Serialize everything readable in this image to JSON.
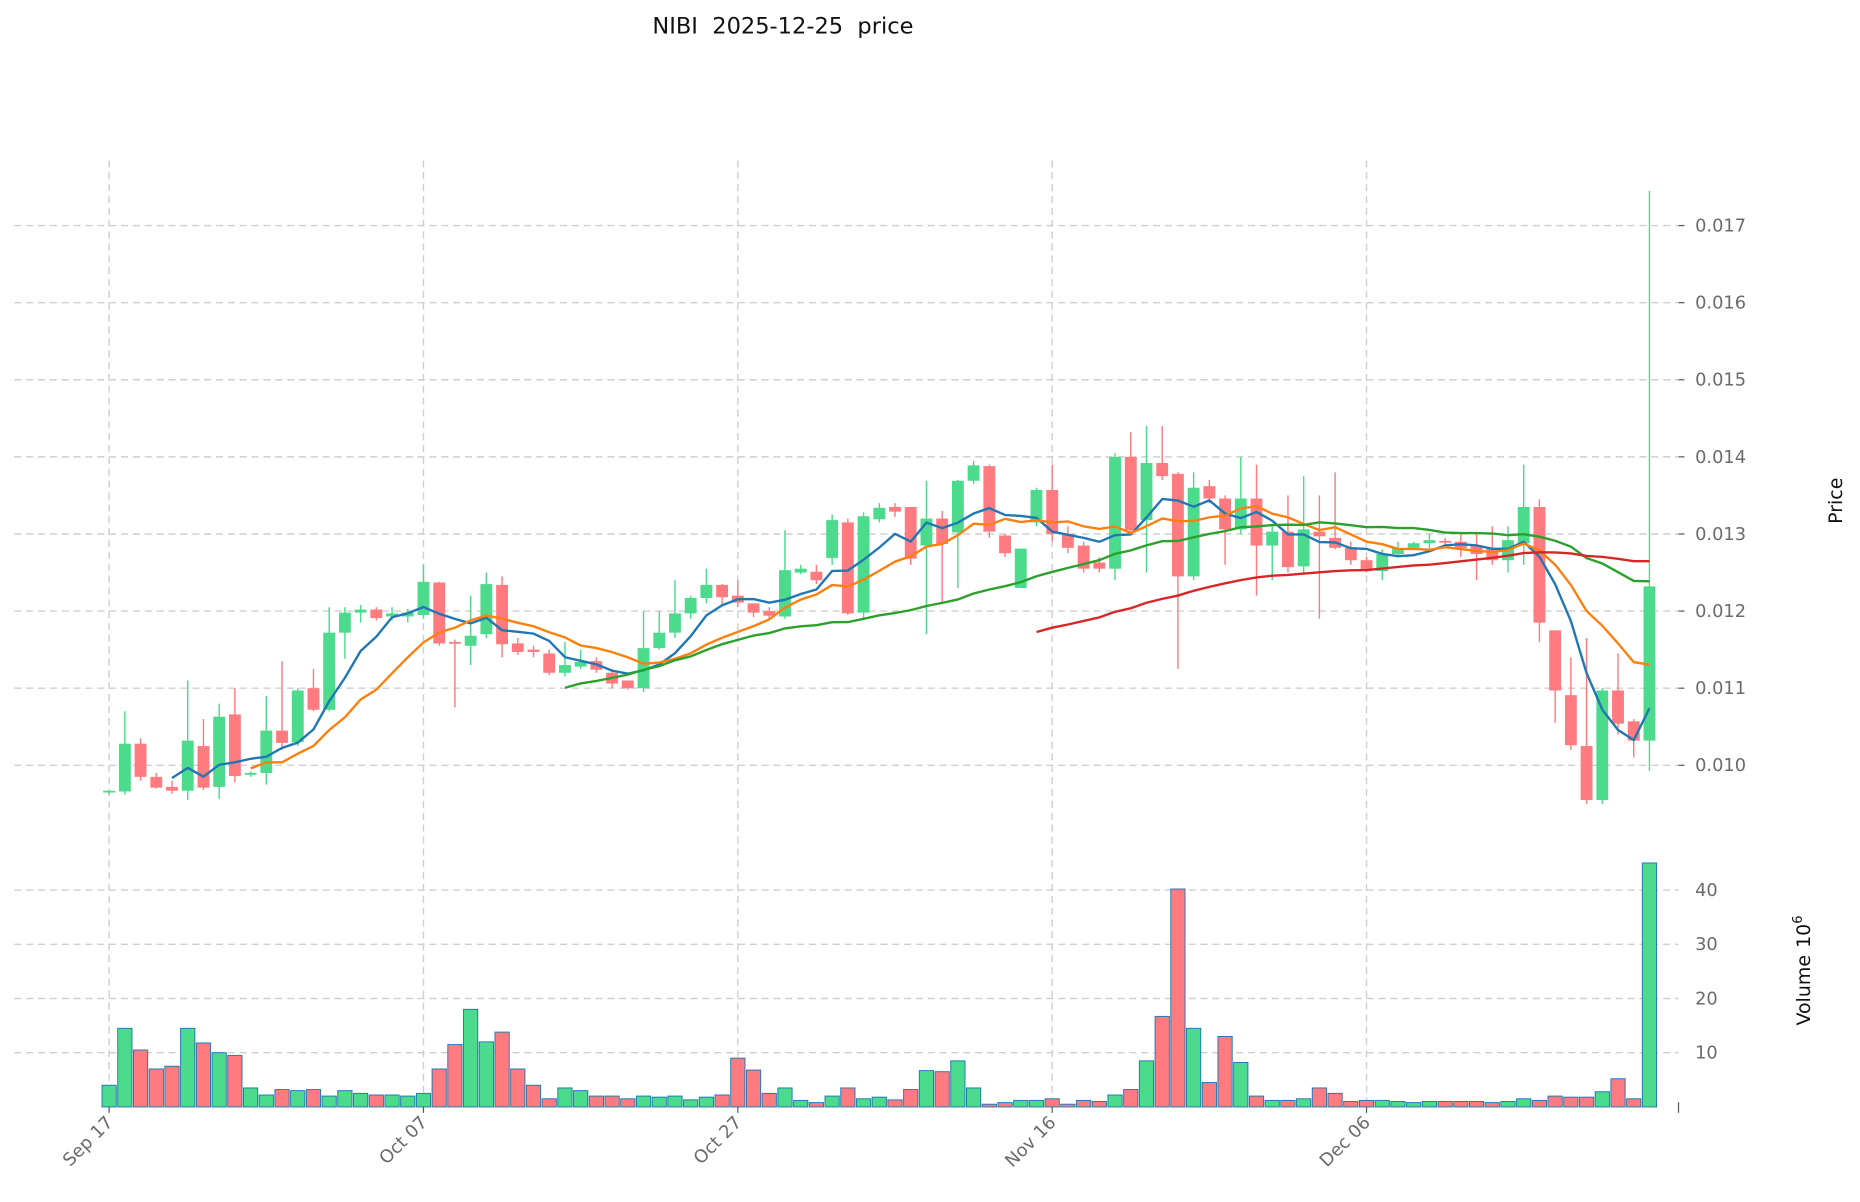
{
  "chart_data": {
    "type": "candlestick",
    "title": "NIBI  2025-12-25  price",
    "title_parts": {
      "symbol": "NIBI",
      "date": "2025-12-25",
      "suffix": "price"
    },
    "ylabel": "Price",
    "volume_label": "Volume",
    "volume_unit": "10",
    "volume_unit_exp": "6",
    "ylim": [
      0.0093,
      0.0177
    ],
    "volume_ylim": [
      0,
      46
    ],
    "price_ticks": [
      "0.010",
      "0.011",
      "0.012",
      "0.013",
      "0.014",
      "0.015",
      "0.016",
      "0.017"
    ],
    "volume_ticks": [
      "10",
      "20",
      "30",
      "40"
    ],
    "x_tick_labels": [
      {
        "label": "Sep 17",
        "index": 0
      },
      {
        "label": "Oct 07",
        "index": 20
      },
      {
        "label": "Oct 27",
        "index": 40
      },
      {
        "label": "Nov 16",
        "index": 60
      },
      {
        "label": "Dec 06",
        "index": 80
      }
    ],
    "grid": true,
    "colors": {
      "up": "#4cdb8c",
      "down": "#ff7b7f",
      "volume_edge": "#1f77b4",
      "ma": [
        "#1f77b4",
        "#ff7f0e",
        "#2ca02c",
        "#d62728"
      ]
    },
    "moving_averages": [
      5,
      10,
      30,
      60
    ],
    "ohlc": [
      [
        0.00966,
        0.00967,
        0.00968,
        0.00962
      ],
      [
        0.00966,
        0.01028,
        0.0107,
        0.00962
      ],
      [
        0.01028,
        0.00985,
        0.01035,
        0.0098
      ],
      [
        0.00985,
        0.00971,
        0.0099,
        0.0097
      ],
      [
        0.00972,
        0.00967,
        0.0098,
        0.00963
      ],
      [
        0.00967,
        0.01032,
        0.0111,
        0.00955
      ],
      [
        0.01025,
        0.00971,
        0.0106,
        0.00968
      ],
      [
        0.00972,
        0.01063,
        0.0108,
        0.00956
      ],
      [
        0.01066,
        0.00986,
        0.011,
        0.00978
      ],
      [
        0.00988,
        0.0099,
        0.00992,
        0.00985
      ],
      [
        0.0099,
        0.01045,
        0.0109,
        0.00975
      ],
      [
        0.01045,
        0.01029,
        0.01135,
        0.0102
      ],
      [
        0.0103,
        0.01097,
        0.011,
        0.01025
      ],
      [
        0.011,
        0.01072,
        0.01125,
        0.0107
      ],
      [
        0.01072,
        0.01172,
        0.01205,
        0.0107
      ],
      [
        0.01172,
        0.01198,
        0.01205,
        0.01138
      ],
      [
        0.01198,
        0.01202,
        0.01208,
        0.01185
      ],
      [
        0.01202,
        0.01191,
        0.01205,
        0.01188
      ],
      [
        0.01193,
        0.01197,
        0.01205,
        0.01188
      ],
      [
        0.01193,
        0.01198,
        0.01203,
        0.01185
      ],
      [
        0.01195,
        0.01238,
        0.0126,
        0.0119
      ],
      [
        0.01237,
        0.01158,
        0.01238,
        0.01155
      ],
      [
        0.0116,
        0.01158,
        0.01163,
        0.01075
      ],
      [
        0.01155,
        0.01168,
        0.0122,
        0.0113
      ],
      [
        0.0117,
        0.01235,
        0.0125,
        0.01165
      ],
      [
        0.01234,
        0.01157,
        0.01245,
        0.0114
      ],
      [
        0.01158,
        0.01147,
        0.01165,
        0.01143
      ],
      [
        0.0115,
        0.01147,
        0.01155,
        0.0114
      ],
      [
        0.01145,
        0.0112,
        0.0115,
        0.01117
      ],
      [
        0.0112,
        0.0113,
        0.0116,
        0.01115
      ],
      [
        0.01128,
        0.01134,
        0.0115,
        0.01125
      ],
      [
        0.01135,
        0.01124,
        0.0114,
        0.0112
      ],
      [
        0.0112,
        0.01106,
        0.01125,
        0.011
      ],
      [
        0.0111,
        0.011,
        0.0111,
        0.01098
      ],
      [
        0.011,
        0.01152,
        0.012,
        0.01095
      ],
      [
        0.01152,
        0.01172,
        0.012,
        0.0115
      ],
      [
        0.01172,
        0.01197,
        0.0124,
        0.01165
      ],
      [
        0.01197,
        0.01217,
        0.0122,
        0.0119
      ],
      [
        0.01217,
        0.01234,
        0.01255,
        0.0121
      ],
      [
        0.01234,
        0.01218,
        0.01235,
        0.01208
      ],
      [
        0.0122,
        0.01211,
        0.0124,
        0.01205
      ],
      [
        0.0121,
        0.01198,
        0.0121,
        0.01192
      ],
      [
        0.012,
        0.01194,
        0.01205,
        0.0119
      ],
      [
        0.01193,
        0.01253,
        0.01305,
        0.0119
      ],
      [
        0.0125,
        0.01255,
        0.0126,
        0.01248
      ],
      [
        0.01251,
        0.0124,
        0.0126,
        0.01235
      ],
      [
        0.01269,
        0.01318,
        0.01325,
        0.0126
      ],
      [
        0.01315,
        0.01197,
        0.0132,
        0.01195
      ],
      [
        0.01198,
        0.01323,
        0.01328,
        0.0119
      ],
      [
        0.01319,
        0.01334,
        0.0134,
        0.01315
      ],
      [
        0.01335,
        0.01329,
        0.0134,
        0.01322
      ],
      [
        0.01335,
        0.01268,
        0.01335,
        0.0126
      ],
      [
        0.01285,
        0.0132,
        0.01369,
        0.0117
      ],
      [
        0.0132,
        0.01287,
        0.0133,
        0.0121
      ],
      [
        0.01302,
        0.01369,
        0.0137,
        0.0123
      ],
      [
        0.01369,
        0.01389,
        0.01395,
        0.01365
      ],
      [
        0.01388,
        0.01303,
        0.0139,
        0.01295
      ],
      [
        0.01298,
        0.01275,
        0.013,
        0.0127
      ],
      [
        0.0123,
        0.01281,
        0.01281,
        0.0123
      ],
      [
        0.01315,
        0.01357,
        0.0136,
        0.0131
      ],
      [
        0.01357,
        0.013,
        0.0139,
        0.0129
      ],
      [
        0.013,
        0.01282,
        0.0131,
        0.01275
      ],
      [
        0.01285,
        0.01255,
        0.0129,
        0.0125
      ],
      [
        0.01263,
        0.01255,
        0.0127,
        0.0125
      ],
      [
        0.01255,
        0.014,
        0.01405,
        0.0124
      ],
      [
        0.014,
        0.01305,
        0.01432,
        0.013
      ],
      [
        0.01318,
        0.01392,
        0.0144,
        0.0125
      ],
      [
        0.01392,
        0.01375,
        0.0144,
        0.0137
      ],
      [
        0.01378,
        0.01245,
        0.0138,
        0.01125
      ],
      [
        0.01245,
        0.0136,
        0.0138,
        0.0124
      ],
      [
        0.01362,
        0.01346,
        0.0137,
        0.0134
      ],
      [
        0.01346,
        0.01306,
        0.0135,
        0.0126
      ],
      [
        0.01306,
        0.01346,
        0.014,
        0.013
      ],
      [
        0.01346,
        0.01285,
        0.0139,
        0.0122
      ],
      [
        0.01285,
        0.01303,
        0.0131,
        0.0124
      ],
      [
        0.01303,
        0.01257,
        0.0135,
        0.0125
      ],
      [
        0.01258,
        0.01306,
        0.01375,
        0.0125
      ],
      [
        0.01303,
        0.01297,
        0.0135,
        0.0119
      ],
      [
        0.01295,
        0.01282,
        0.0138,
        0.0128
      ],
      [
        0.01282,
        0.01266,
        0.0129,
        0.0126
      ],
      [
        0.01266,
        0.01252,
        0.0127,
        0.0125
      ],
      [
        0.01252,
        0.01274,
        0.0128,
        0.0124
      ],
      [
        0.01274,
        0.01282,
        0.0129,
        0.0127
      ],
      [
        0.01282,
        0.01288,
        0.0129,
        0.0128
      ],
      [
        0.01288,
        0.01292,
        0.013,
        0.0128
      ],
      [
        0.01291,
        0.0129,
        0.01295,
        0.01285
      ],
      [
        0.0129,
        0.01282,
        0.013,
        0.0127
      ],
      [
        0.01285,
        0.01274,
        0.013,
        0.0124
      ],
      [
        0.01282,
        0.01266,
        0.0131,
        0.0126
      ],
      [
        0.01266,
        0.01292,
        0.0131,
        0.0125
      ],
      [
        0.01288,
        0.01335,
        0.0139,
        0.0126
      ],
      [
        0.01335,
        0.01185,
        0.01345,
        0.0116
      ],
      [
        0.01175,
        0.01097,
        0.01175,
        0.01055
      ],
      [
        0.01091,
        0.01026,
        0.0114,
        0.0102
      ],
      [
        0.01025,
        0.00955,
        0.01165,
        0.0095
      ],
      [
        0.00955,
        0.01097,
        0.011,
        0.0095
      ],
      [
        0.01097,
        0.01054,
        0.01145,
        0.0104
      ],
      [
        0.01057,
        0.01032,
        0.0106,
        0.0101
      ],
      [
        0.01032,
        0.01232,
        0.01745,
        0.00993
      ]
    ],
    "volume": [
      4,
      14.5,
      10.5,
      7,
      7.5,
      14.5,
      11.8,
      10,
      9.5,
      3.5,
      2.2,
      3.2,
      3,
      3.2,
      2,
      3,
      2.5,
      2.2,
      2.2,
      2,
      2.5,
      7,
      11.5,
      18,
      12,
      13.8,
      7,
      4,
      1.5,
      3.5,
      3,
      2,
      2,
      1.5,
      2,
      1.8,
      2,
      1.3,
      1.8,
      2.2,
      9,
      6.8,
      2.5,
      3.5,
      1.2,
      0.8,
      2,
      3.5,
      1.5,
      1.8,
      1.3,
      3.2,
      6.7,
      6.5,
      8.5,
      3.5,
      0.5,
      0.8,
      1.2,
      1.2,
      1.5,
      0.5,
      1.2,
      1,
      2.2,
      3.2,
      8.5,
      16.7,
      40.2,
      14.5,
      4.5,
      13,
      8.2,
      2,
      1.2,
      1.2,
      1.5,
      3.5,
      2.5,
      1,
      1.2,
      1.2,
      1,
      0.8,
      1,
      1,
      1,
      1,
      0.8,
      1,
      1.5,
      1.2,
      2,
      1.8,
      1.8,
      2.8,
      5.2,
      1.5,
      45
    ]
  }
}
